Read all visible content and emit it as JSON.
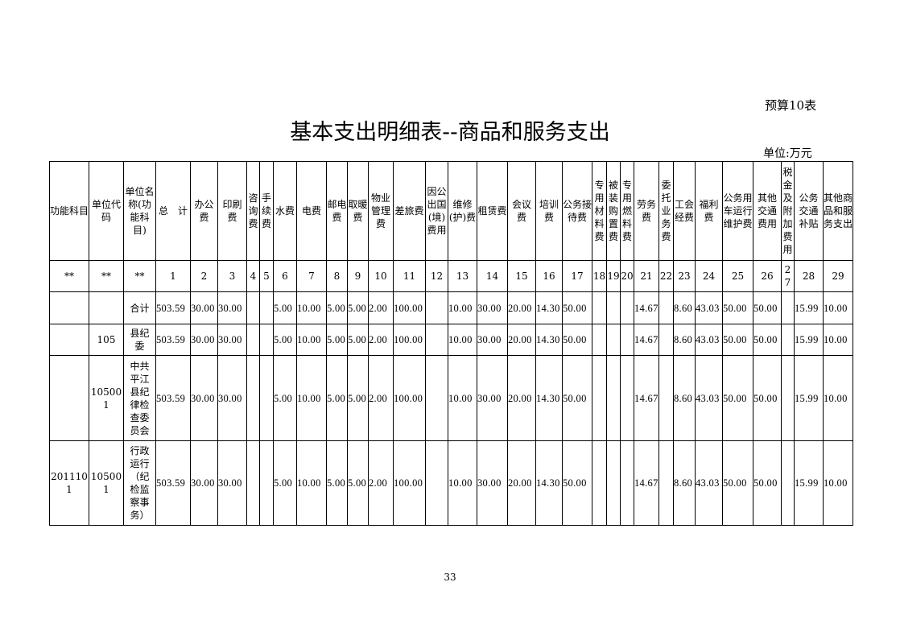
{
  "form_no": "预算10表",
  "title": "基本支出明细表--商品和服务支出",
  "unit": "单位:万元",
  "page_number": "33",
  "table": {
    "headers": [
      "功能科目",
      "单位代码",
      "单位名称(功能科目)",
      "总　计",
      "办公费",
      "印刷费",
      "咨询费",
      "手续费",
      "水费",
      "电费",
      "邮电费",
      "取暖费",
      "物业管理费",
      "差旅费",
      "因公出国(境)费用",
      "维修(护)费",
      "租赁费",
      "会议费",
      "培训费",
      "公务接待费",
      "专用材料费",
      "被装购置费",
      "专用燃料费",
      "劳务费",
      "委托业务费",
      "工会经费",
      "福利费",
      "公务用车运行维护费",
      "其他交通费用",
      "税金及附加费用",
      "公务交通补贴",
      "其他商品和服务支出"
    ],
    "numbers": [
      "**",
      "**",
      "**",
      "1",
      "2",
      "3",
      "4",
      "5",
      "6",
      "7",
      "8",
      "9",
      "10",
      "11",
      "12",
      "13",
      "14",
      "15",
      "16",
      "17",
      "18",
      "19",
      "20",
      "21",
      "22",
      "23",
      "24",
      "25",
      "26",
      "27",
      "28",
      "29"
    ],
    "rows": [
      [
        "",
        "",
        "合计",
        "503.59",
        "30.00",
        "30.00",
        "",
        "",
        "5.00",
        "10.00",
        "5.00",
        "5.00",
        "2.00",
        "100.00",
        "",
        "10.00",
        "30.00",
        "20.00",
        "14.30",
        "50.00",
        "",
        "",
        "",
        "14.67",
        "",
        "8.60",
        "43.03",
        "50.00",
        "50.00",
        "",
        "15.99",
        "10.00"
      ],
      [
        "",
        "105",
        "县纪委",
        "503.59",
        "30.00",
        "30.00",
        "",
        "",
        "5.00",
        "10.00",
        "5.00",
        "5.00",
        "2.00",
        "100.00",
        "",
        "10.00",
        "30.00",
        "20.00",
        "14.30",
        "50.00",
        "",
        "",
        "",
        "14.67",
        "",
        "8.60",
        "43.03",
        "50.00",
        "50.00",
        "",
        "15.99",
        "10.00"
      ],
      [
        "",
        "105001",
        "中共平江县纪律检查委员会",
        "503.59",
        "30.00",
        "30.00",
        "",
        "",
        "5.00",
        "10.00",
        "5.00",
        "5.00",
        "2.00",
        "100.00",
        "",
        "10.00",
        "30.00",
        "20.00",
        "14.30",
        "50.00",
        "",
        "",
        "",
        "14.67",
        "",
        "8.60",
        "43.03",
        "50.00",
        "50.00",
        "",
        "15.99",
        "10.00"
      ],
      [
        "2011101",
        "105001",
        "行政运行（纪检监察事务）",
        "503.59",
        "30.00",
        "30.00",
        "",
        "",
        "5.00",
        "10.00",
        "5.00",
        "5.00",
        "2.00",
        "100.00",
        "",
        "10.00",
        "30.00",
        "20.00",
        "14.30",
        "50.00",
        "",
        "",
        "",
        "14.67",
        "",
        "8.60",
        "43.03",
        "50.00",
        "50.00",
        "",
        "15.99",
        "10.00"
      ]
    ]
  }
}
